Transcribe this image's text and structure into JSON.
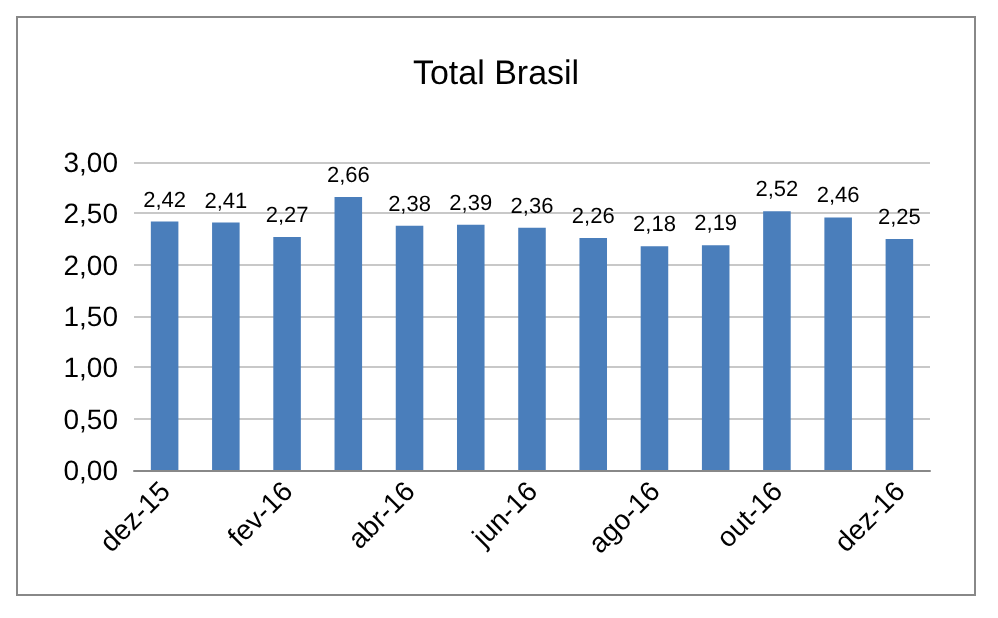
{
  "chart_data": {
    "type": "bar",
    "title": "Total Brasil",
    "categories": [
      "dez-15",
      null,
      "fev-16",
      null,
      "abr-16",
      null,
      "jun-16",
      null,
      "ago-16",
      null,
      "out-16",
      null,
      "dez-16"
    ],
    "values": [
      2.42,
      2.41,
      2.27,
      2.66,
      2.38,
      2.39,
      2.36,
      2.26,
      2.18,
      2.19,
      2.52,
      2.46,
      2.25
    ],
    "value_labels": [
      "2,42",
      "2,41",
      "2,27",
      "2,66",
      "2,38",
      "2,39",
      "2,36",
      "2,26",
      "2,18",
      "2,19",
      "2,52",
      "2,46",
      "2,25"
    ],
    "color": "#4a7ebb",
    "ylim": [
      0,
      3
    ],
    "yticks": [
      {
        "value": 0,
        "label": "0,00"
      },
      {
        "value": 0.5,
        "label": "0,50"
      },
      {
        "value": 1,
        "label": "1,00"
      },
      {
        "value": 1.5,
        "label": "1,50"
      },
      {
        "value": 2,
        "label": "2,00"
      },
      {
        "value": 2.5,
        "label": "2,50"
      },
      {
        "value": 3,
        "label": "3,00"
      }
    ],
    "grid": true
  }
}
